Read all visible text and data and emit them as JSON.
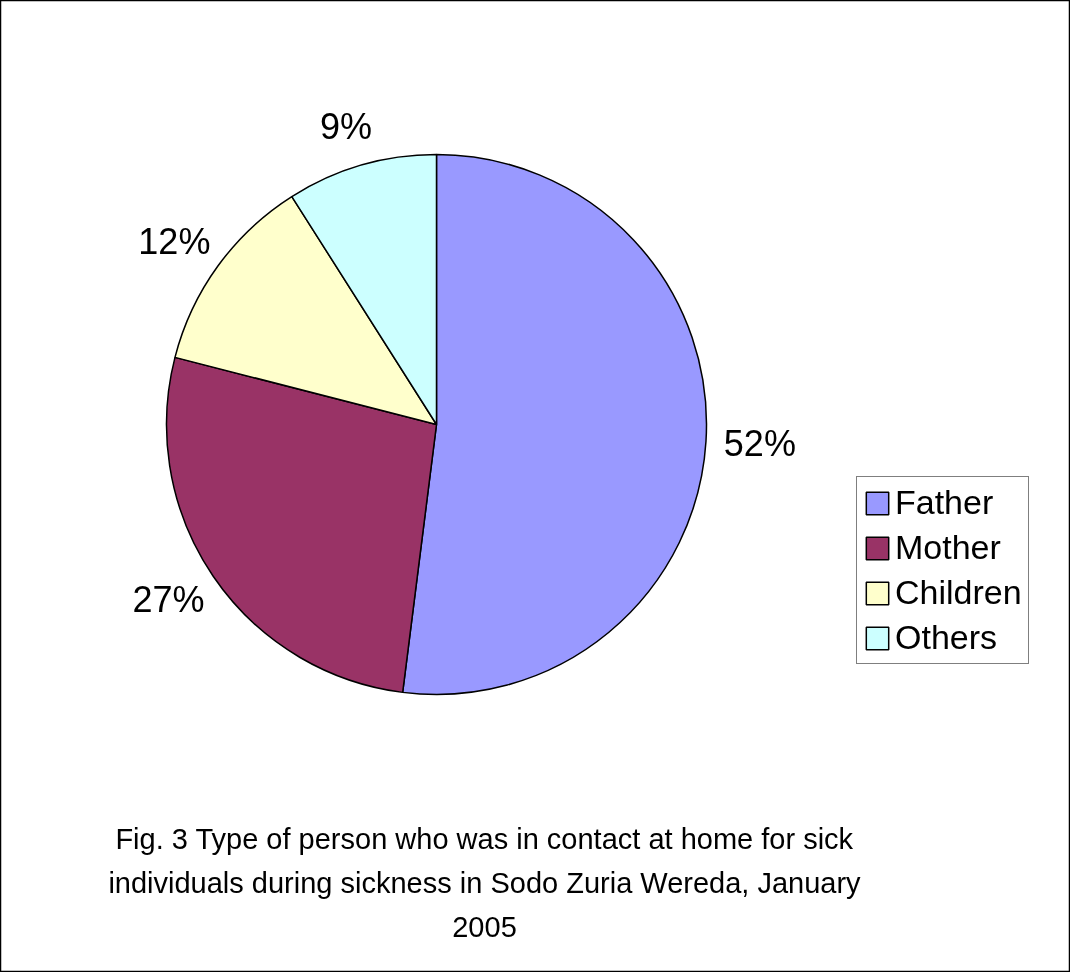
{
  "chart_data": {
    "type": "pie",
    "categories": [
      "Father",
      "Mother",
      "Children",
      "Others"
    ],
    "values": [
      52,
      27,
      12,
      9
    ],
    "colors": [
      "#9999ff",
      "#993366",
      "#ffffcc",
      "#ccffff"
    ],
    "value_labels": [
      "52%",
      "27%",
      "12%",
      "9%"
    ],
    "legend": "right",
    "annotations": [
      "Fig. 3 Type of person who was in contact at home for sick individuals during sickness in Sodo Zuria Wereda, January 2005"
    ]
  }
}
